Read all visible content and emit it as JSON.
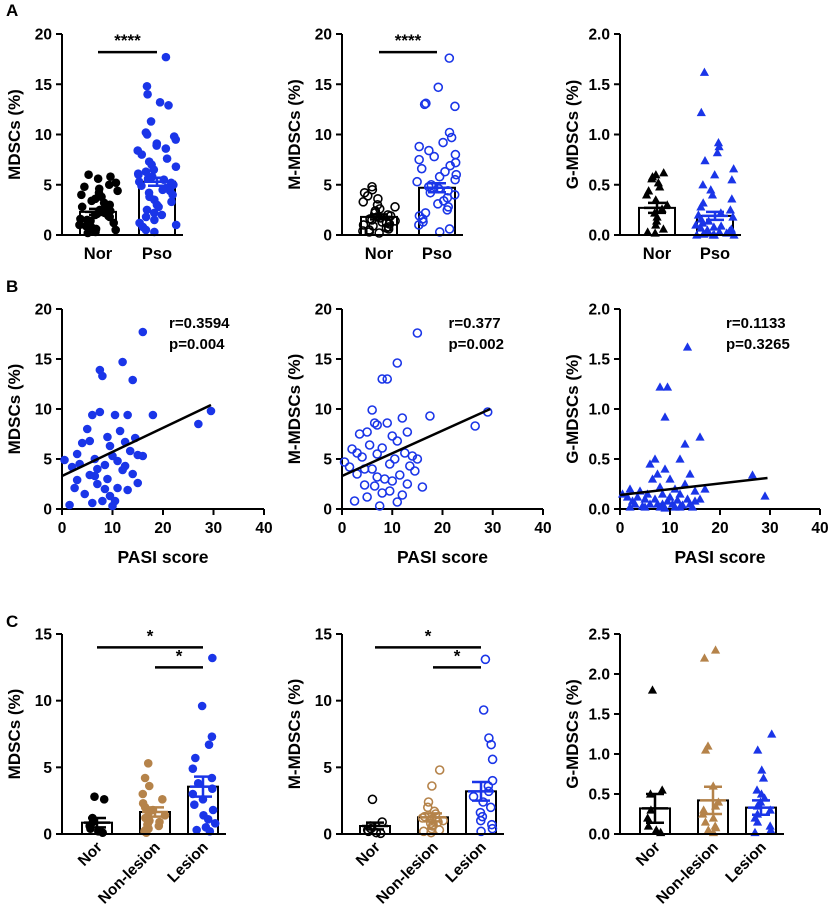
{
  "figure": {
    "panel_letters": [
      "A",
      "B",
      "C"
    ]
  },
  "colors": {
    "axis": "#000000",
    "nor": "#000000",
    "pso": "#1a35e8",
    "nonlesion": "#b5834a",
    "lesion": "#1a35e8"
  },
  "chart_data": [
    {
      "id": "A1",
      "type": "bar",
      "title": "",
      "xlabel": "",
      "ylabel": "MDSCs (%)",
      "ylim": [
        0,
        20
      ],
      "yticks": [
        "0",
        "5",
        "10",
        "15",
        "20"
      ],
      "categories": [
        "Nor",
        "Pso"
      ],
      "means": [
        2.3,
        5.3
      ],
      "sem": [
        0.3,
        0.4
      ],
      "marker": "circle-filled",
      "series_colors": [
        "nor",
        "pso"
      ],
      "points": [
        [
          6.0,
          5.8,
          5.6,
          5.2,
          5.0,
          4.8,
          4.6,
          4.4,
          4.2,
          4.0,
          3.8,
          3.6,
          3.4,
          3.2,
          3.0,
          2.8,
          2.6,
          2.5,
          2.4,
          2.3,
          2.2,
          2.1,
          2.0,
          1.9,
          1.8,
          1.6,
          1.5,
          1.4,
          1.2,
          1.0,
          0.9,
          0.8,
          0.6,
          0.5,
          0.3,
          0.2
        ],
        [
          17.7,
          14.8,
          14.0,
          13.2,
          12.9,
          11.3,
          10.2,
          10.0,
          9.8,
          9.5,
          9.1,
          8.9,
          8.6,
          8.4,
          8.0,
          7.6,
          7.3,
          7.0,
          6.8,
          6.5,
          6.3,
          6.1,
          6.0,
          5.8,
          5.6,
          5.5,
          5.3,
          5.2,
          5.0,
          4.9,
          4.7,
          4.5,
          4.4,
          4.2,
          4.0,
          3.8,
          3.5,
          3.3,
          3.0,
          2.8,
          2.5,
          2.2,
          2.0,
          1.8,
          1.5,
          1.2,
          1.0,
          0.8,
          0.5,
          0.3
        ]
      ],
      "sig": [
        {
          "from": 0,
          "to": 1,
          "label": "****",
          "y": 18.2
        }
      ]
    },
    {
      "id": "A2",
      "type": "bar",
      "title": "",
      "xlabel": "",
      "ylabel": "M-MDSCs (%)",
      "ylim": [
        0,
        20
      ],
      "yticks": [
        "0",
        "5",
        "10",
        "15",
        "20"
      ],
      "categories": [
        "Nor",
        "Pso"
      ],
      "means": [
        1.8,
        4.7
      ],
      "sem": [
        0.25,
        0.45
      ],
      "marker": "circle-open",
      "series_colors": [
        "nor",
        "pso"
      ],
      "points": [
        [
          4.8,
          4.5,
          4.2,
          3.9,
          3.6,
          3.3,
          3.0,
          2.8,
          2.6,
          2.4,
          2.2,
          2.0,
          1.9,
          1.8,
          1.7,
          1.6,
          1.5,
          1.4,
          1.3,
          1.2,
          1.1,
          1.0,
          0.9,
          0.8,
          0.7,
          0.6,
          0.5,
          0.4,
          0.3,
          0.2
        ],
        [
          17.6,
          14.7,
          13.1,
          13.0,
          12.8,
          10.2,
          9.7,
          9.2,
          8.8,
          8.4,
          8.0,
          7.8,
          7.5,
          7.2,
          6.9,
          6.6,
          6.3,
          6.0,
          5.8,
          5.5,
          5.3,
          5.0,
          4.8,
          4.6,
          4.4,
          4.2,
          4.0,
          3.7,
          3.4,
          3.1,
          2.8,
          2.5,
          2.2,
          1.9,
          1.6,
          1.3,
          1.0,
          0.6,
          0.3
        ]
      ],
      "sig": [
        {
          "from": 0,
          "to": 1,
          "label": "****",
          "y": 18.2
        }
      ]
    },
    {
      "id": "A3",
      "type": "bar",
      "title": "",
      "xlabel": "",
      "ylabel": "G-MDSCs (%)",
      "ylim": [
        0,
        2.0
      ],
      "yticks": [
        "0.0",
        "0.5",
        "1.0",
        "1.5",
        "2.0"
      ],
      "categories": [
        "Nor",
        "Pso"
      ],
      "means": [
        0.27,
        0.19
      ],
      "sem": [
        0.05,
        0.04
      ],
      "marker": "triangle-filled",
      "series_colors": [
        "nor",
        "pso"
      ],
      "points": [
        [
          0.62,
          0.6,
          0.58,
          0.56,
          0.52,
          0.48,
          0.44,
          0.4,
          0.35,
          0.3,
          0.26,
          0.22,
          0.18,
          0.14,
          0.1,
          0.06,
          0.03,
          0.02
        ],
        [
          1.62,
          1.22,
          0.92,
          0.88,
          0.82,
          0.74,
          0.66,
          0.6,
          0.55,
          0.5,
          0.45,
          0.4,
          0.36,
          0.32,
          0.28,
          0.25,
          0.22,
          0.2,
          0.18,
          0.16,
          0.14,
          0.12,
          0.1,
          0.09,
          0.08,
          0.07,
          0.06,
          0.05,
          0.04,
          0.03,
          0.02,
          0.02,
          0.01,
          0.01,
          0.0,
          0.0,
          0.0,
          0.0
        ]
      ],
      "sig": []
    },
    {
      "id": "B1",
      "type": "scatter",
      "title": "",
      "xlabel": "PASI score",
      "ylabel": "MDSCs (%)",
      "xlim": [
        0,
        40
      ],
      "ylim": [
        0,
        20
      ],
      "xticks": [
        "0",
        "10",
        "20",
        "30",
        "40"
      ],
      "yticks": [
        "0",
        "5",
        "10",
        "15",
        "20"
      ],
      "marker": "circle-filled",
      "series_color": "pso",
      "annotation": [
        "r=0.3594",
        "p=0.004"
      ],
      "fit": [
        [
          0,
          3.3
        ],
        [
          29.5,
          10.4
        ]
      ],
      "points": [
        [
          0.5,
          4.9
        ],
        [
          1.5,
          0.4
        ],
        [
          2,
          4.2
        ],
        [
          2.5,
          2.1
        ],
        [
          3,
          5.5
        ],
        [
          3.5,
          4.5
        ],
        [
          4,
          6.6
        ],
        [
          4.5,
          1.5
        ],
        [
          5,
          8.0
        ],
        [
          5.5,
          3.4
        ],
        [
          6,
          9.4
        ],
        [
          6,
          0.6
        ],
        [
          6.5,
          5.0
        ],
        [
          7,
          4.0
        ],
        [
          7,
          2.5
        ],
        [
          7.5,
          13.9
        ],
        [
          7.5,
          9.7
        ],
        [
          8,
          13.3
        ],
        [
          8,
          0.8
        ],
        [
          8.5,
          4.4
        ],
        [
          8.5,
          2.0
        ],
        [
          9,
          7.2
        ],
        [
          9,
          3.0
        ],
        [
          9.5,
          6.3
        ],
        [
          9.5,
          1.3
        ],
        [
          10,
          5.3
        ],
        [
          10,
          0.3
        ],
        [
          10.5,
          9.4
        ],
        [
          11,
          4.8
        ],
        [
          11,
          2.1
        ],
        [
          11.5,
          7.8
        ],
        [
          12,
          14.7
        ],
        [
          12,
          3.9
        ],
        [
          12.5,
          6.7
        ],
        [
          13,
          9.4
        ],
        [
          13,
          1.9
        ],
        [
          13.5,
          5.8
        ],
        [
          14,
          12.9
        ],
        [
          14,
          3.5
        ],
        [
          14.5,
          7.1
        ],
        [
          15,
          5.4
        ],
        [
          15,
          2.6
        ],
        [
          16,
          17.7
        ],
        [
          16,
          5.3
        ],
        [
          18,
          9.4
        ],
        [
          27,
          8.5
        ],
        [
          29.5,
          9.8
        ],
        [
          3,
          2.9
        ],
        [
          5.5,
          6.8
        ],
        [
          10.5,
          0.8
        ],
        [
          6.5,
          3.3
        ],
        [
          12.5,
          4.3
        ]
      ]
    },
    {
      "id": "B2",
      "type": "scatter",
      "title": "",
      "xlabel": "PASI score",
      "ylabel": "M-MDSCs (%)",
      "xlim": [
        0,
        40
      ],
      "ylim": [
        0,
        20
      ],
      "xticks": [
        "0",
        "10",
        "20",
        "30",
        "40"
      ],
      "yticks": [
        "0",
        "5",
        "10",
        "15",
        "20"
      ],
      "marker": "circle-open",
      "series_color": "pso",
      "annotation": [
        "r=0.377",
        "p=0.002"
      ],
      "fit": [
        [
          0,
          3.3
        ],
        [
          29.5,
          10.0
        ]
      ],
      "points": [
        [
          0.5,
          4.7
        ],
        [
          1.5,
          4.2
        ],
        [
          2,
          6.0
        ],
        [
          2.5,
          0.8
        ],
        [
          3,
          3.5
        ],
        [
          3.5,
          7.5
        ],
        [
          4,
          5.2
        ],
        [
          4.5,
          2.4
        ],
        [
          5,
          7.7
        ],
        [
          5,
          1.2
        ],
        [
          5.5,
          6.4
        ],
        [
          6,
          9.9
        ],
        [
          6,
          4.0
        ],
        [
          6.5,
          2.3
        ],
        [
          7,
          8.4
        ],
        [
          7,
          5.5
        ],
        [
          7.5,
          0.3
        ],
        [
          8,
          13.0
        ],
        [
          8,
          6.1
        ],
        [
          8.5,
          3.0
        ],
        [
          9,
          13.0
        ],
        [
          9,
          8.6
        ],
        [
          9.5,
          4.5
        ],
        [
          9.5,
          1.8
        ],
        [
          10,
          7.3
        ],
        [
          10,
          2.8
        ],
        [
          10.5,
          5.0
        ],
        [
          11,
          14.6
        ],
        [
          11,
          6.8
        ],
        [
          11.5,
          3.4
        ],
        [
          12,
          9.1
        ],
        [
          12,
          1.4
        ],
        [
          12.5,
          5.6
        ],
        [
          13,
          7.7
        ],
        [
          13,
          2.5
        ],
        [
          13.5,
          4.3
        ],
        [
          14,
          5.3
        ],
        [
          14.5,
          3.8
        ],
        [
          15,
          17.6
        ],
        [
          15,
          5.0
        ],
        [
          16,
          2.2
        ],
        [
          17.5,
          9.3
        ],
        [
          26.5,
          8.3
        ],
        [
          29,
          9.7
        ],
        [
          3,
          5.6
        ],
        [
          4.5,
          4.0
        ],
        [
          6.5,
          8.6
        ],
        [
          8,
          1.6
        ],
        [
          11,
          0.7
        ],
        [
          7,
          3.2
        ]
      ]
    },
    {
      "id": "B3",
      "type": "scatter",
      "title": "",
      "xlabel": "PASI score",
      "ylabel": "G-MDSCs (%)",
      "xlim": [
        0,
        40
      ],
      "ylim": [
        0,
        2.0
      ],
      "xticks": [
        "0",
        "10",
        "20",
        "30",
        "40"
      ],
      "yticks": [
        "0.0",
        "0.5",
        "1.0",
        "1.5",
        "2.0"
      ],
      "marker": "triangle-filled",
      "series_color": "pso",
      "annotation": [
        "r=0.1133",
        "p=0.3265"
      ],
      "fit": [
        [
          0,
          0.14
        ],
        [
          29.5,
          0.31
        ]
      ],
      "points": [
        [
          0.5,
          0.15
        ],
        [
          1.5,
          0.12
        ],
        [
          2,
          0.2
        ],
        [
          2.5,
          0.08
        ],
        [
          3,
          0.05
        ],
        [
          3.5,
          0.12
        ],
        [
          4,
          0.18
        ],
        [
          4.5,
          0.03
        ],
        [
          5,
          0.1
        ],
        [
          5.5,
          0.15
        ],
        [
          6,
          0.45
        ],
        [
          6.5,
          0.3
        ],
        [
          7,
          0.5
        ],
        [
          7,
          0.1
        ],
        [
          7.5,
          0.35
        ],
        [
          7.5,
          0.05
        ],
        [
          8,
          0.22
        ],
        [
          8,
          1.22
        ],
        [
          8.5,
          0.05
        ],
        [
          8.5,
          0.15
        ],
        [
          9,
          0.92
        ],
        [
          9,
          0.4
        ],
        [
          9.5,
          1.22
        ],
        [
          9.5,
          0.08
        ],
        [
          10,
          0.3
        ],
        [
          10,
          0.12
        ],
        [
          10.5,
          0.05
        ],
        [
          11,
          0.2
        ],
        [
          11.5,
          0.09
        ],
        [
          12,
          0.5
        ],
        [
          12,
          0.15
        ],
        [
          12.5,
          0.04
        ],
        [
          13,
          0.65
        ],
        [
          13,
          0.25
        ],
        [
          13.5,
          1.62
        ],
        [
          13.5,
          0.1
        ],
        [
          14,
          0.35
        ],
        [
          14,
          0.05
        ],
        [
          15,
          0.18
        ],
        [
          15,
          0.08
        ],
        [
          16,
          0.72
        ],
        [
          16,
          0.1
        ],
        [
          17,
          0.2
        ],
        [
          26.5,
          0.34
        ],
        [
          29,
          0.13
        ],
        [
          2,
          0.02
        ],
        [
          5,
          0.02
        ],
        [
          9,
          0.01
        ],
        [
          11,
          0.02
        ],
        [
          14.5,
          0.02
        ],
        [
          6,
          0.05
        ],
        [
          8,
          0.02
        ],
        [
          12,
          0.02
        ]
      ]
    },
    {
      "id": "C1",
      "type": "bar",
      "title": "",
      "xlabel": "",
      "ylabel": "MDSCs (%)",
      "ylim": [
        0,
        15
      ],
      "yticks": [
        "0",
        "5",
        "10",
        "15"
      ],
      "categories": [
        "Nor",
        "Non-lesion",
        "Lesion"
      ],
      "means": [
        0.85,
        1.65,
        3.55
      ],
      "sem": [
        0.35,
        0.35,
        0.75
      ],
      "marker": "circle-filled",
      "series_colors": [
        "nor",
        "nonlesion",
        "lesion"
      ],
      "points": [
        [
          2.8,
          2.6,
          1.2,
          0.9,
          0.6,
          0.4,
          0.2,
          0.1
        ],
        [
          5.3,
          4.2,
          3.6,
          3.0,
          2.6,
          2.3,
          2.0,
          1.8,
          1.6,
          1.4,
          1.2,
          1.0,
          0.9,
          0.8,
          0.7,
          0.6,
          0.4,
          0.3,
          0.2,
          0.1
        ],
        [
          13.2,
          9.6,
          7.3,
          6.7,
          5.7,
          4.9,
          4.2,
          3.8,
          3.4,
          3.0,
          2.6,
          2.2,
          1.8,
          1.4,
          1.1,
          0.8,
          0.5,
          0.3,
          0.2
        ]
      ],
      "sig": [
        {
          "from": 0,
          "to": 2,
          "label": "*",
          "y": 14.0
        },
        {
          "from": 1,
          "to": 2,
          "label": "*",
          "y": 12.5
        }
      ]
    },
    {
      "id": "C2",
      "type": "bar",
      "title": "",
      "xlabel": "",
      "ylabel": "M-MDSCs (%)",
      "ylim": [
        0,
        15
      ],
      "yticks": [
        "0",
        "5",
        "10",
        "15"
      ],
      "categories": [
        "Nor",
        "Non-lesion",
        "Lesion"
      ],
      "means": [
        0.6,
        1.25,
        3.2
      ],
      "sem": [
        0.25,
        0.3,
        0.7
      ],
      "marker": "circle-open",
      "series_colors": [
        "nor",
        "nonlesion",
        "lesion"
      ],
      "points": [
        [
          2.6,
          0.9,
          0.6,
          0.4,
          0.3,
          0.2,
          0.1,
          0.05
        ],
        [
          4.8,
          3.6,
          2.4,
          2.0,
          1.7,
          1.5,
          1.3,
          1.2,
          1.1,
          1.0,
          0.9,
          0.8,
          0.7,
          0.6,
          0.4,
          0.3,
          0.2,
          0.1
        ],
        [
          13.1,
          9.3,
          7.2,
          6.7,
          5.6,
          4.0,
          3.6,
          3.2,
          2.8,
          2.4,
          2.0,
          1.6,
          1.3,
          1.0,
          0.7,
          0.4,
          0.2
        ]
      ],
      "sig": [
        {
          "from": 0,
          "to": 2,
          "label": "*",
          "y": 14.0
        },
        {
          "from": 1,
          "to": 2,
          "label": "*",
          "y": 12.5
        }
      ]
    },
    {
      "id": "C3",
      "type": "bar",
      "title": "",
      "xlabel": "",
      "ylabel": "G-MDSCs (%)",
      "ylim": [
        0,
        2.5
      ],
      "yticks": [
        "0.0",
        "0.5",
        "1.0",
        "1.5",
        "2.0",
        "2.5"
      ],
      "categories": [
        "Nor",
        "Non-lesion",
        "Lesion"
      ],
      "means": [
        0.32,
        0.42,
        0.33
      ],
      "sem": [
        0.18,
        0.17,
        0.09
      ],
      "marker": "triangle-filled",
      "series_colors": [
        "nor",
        "nonlesion",
        "lesion"
      ],
      "points": [
        [
          1.8,
          0.55,
          0.5,
          0.3,
          0.2,
          0.1,
          0.05,
          0.02
        ],
        [
          2.3,
          2.2,
          1.1,
          1.05,
          0.6,
          0.4,
          0.35,
          0.3,
          0.25,
          0.2,
          0.15,
          0.1,
          0.08,
          0.05,
          0.02
        ],
        [
          1.25,
          1.05,
          0.8,
          0.7,
          0.55,
          0.5,
          0.45,
          0.4,
          0.35,
          0.3,
          0.25,
          0.2,
          0.15,
          0.1,
          0.05,
          0.02
        ]
      ],
      "sig": []
    }
  ]
}
